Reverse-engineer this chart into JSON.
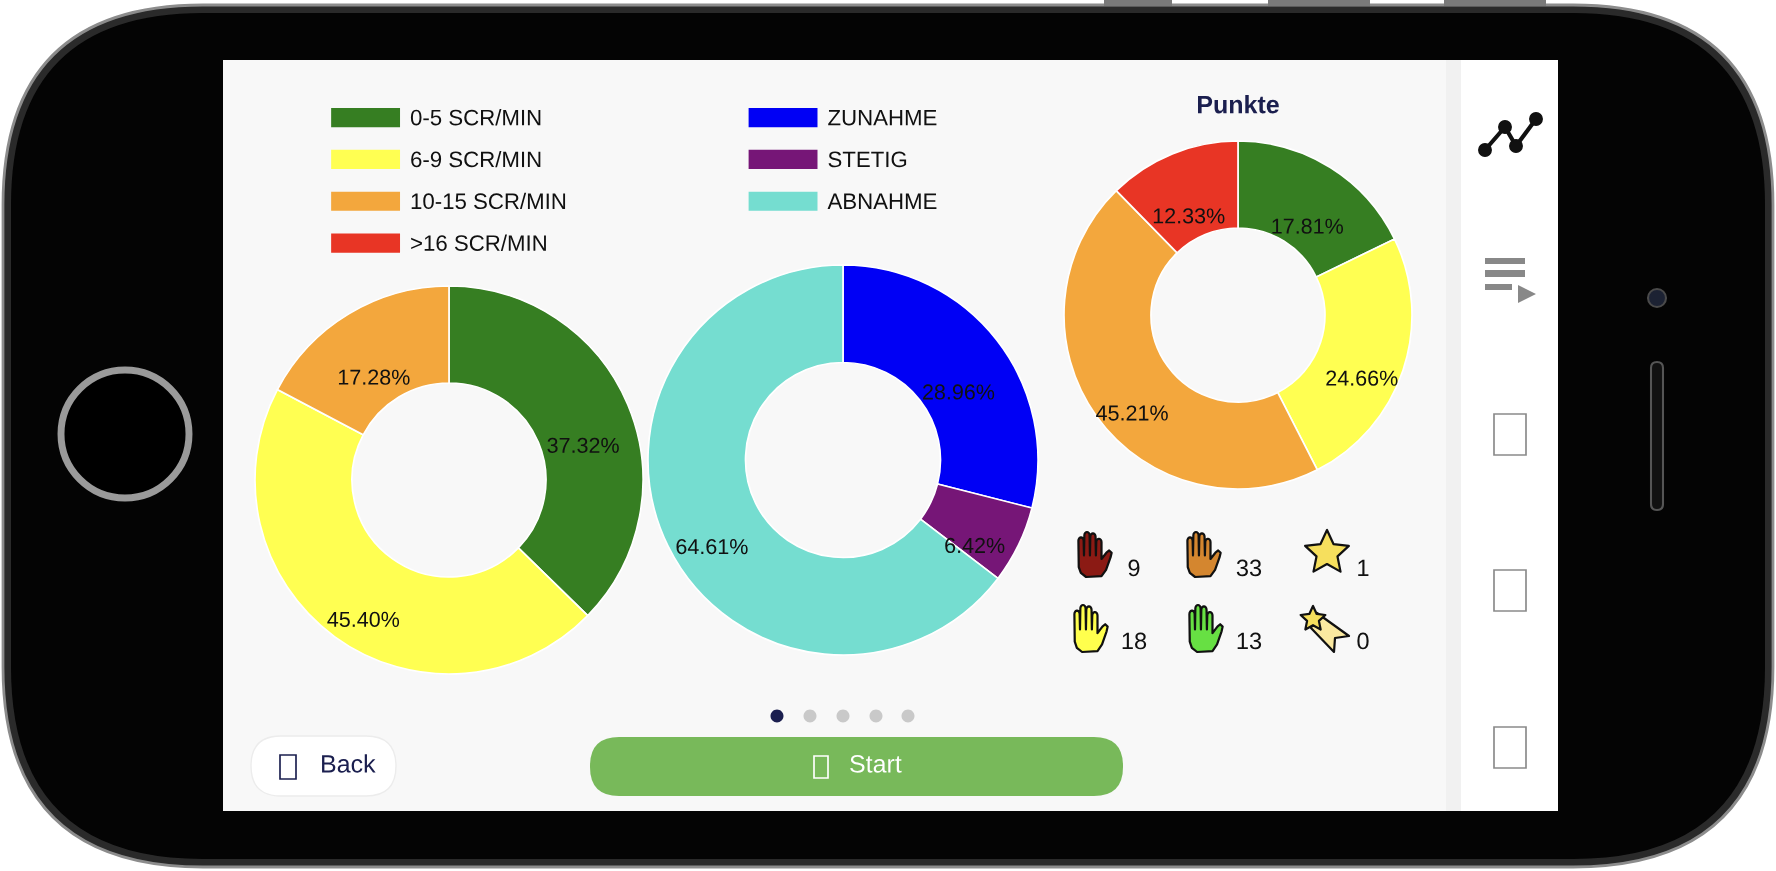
{
  "chart_data": [
    {
      "type": "donut",
      "categories": [
        "0-5 SCR/MIN",
        "6-9 SCR/MIN",
        "10-15 SCR/MIN",
        ">16 SCR/MIN"
      ],
      "values": [
        37.32,
        45.4,
        17.28,
        0
      ],
      "colors": [
        "#367e22",
        "#ffff52",
        "#f3a73d",
        "#e83525"
      ],
      "value_labels": [
        "37.32%",
        "45.40%",
        "17.28%",
        null
      ],
      "legend": "top"
    },
    {
      "type": "donut",
      "categories": [
        "ZUNAHME",
        "STETIG",
        "ABNAHME"
      ],
      "values": [
        28.96,
        6.42,
        64.61
      ],
      "colors": [
        "#0000f5",
        "#761677",
        "#75ddd0"
      ],
      "value_labels": [
        "28.96%",
        "6.42%",
        "64.61%"
      ],
      "legend": "top"
    },
    {
      "type": "donut",
      "title": "Punkte",
      "categories": [
        null,
        null,
        null,
        null
      ],
      "values": [
        17.81,
        24.66,
        45.21,
        12.33
      ],
      "colors": [
        "#367e22",
        "#ffff52",
        "#f3a73d",
        "#e83525"
      ],
      "value_labels": [
        "17.81%",
        "24.66%",
        "45.21%",
        "12.33%"
      ]
    },
    {
      "type": "other",
      "annotations": [
        "9",
        "33",
        "1",
        "18",
        "13",
        "0"
      ]
    },
    {
      "type": "other",
      "annotations": [
        "Back",
        "Start"
      ]
    }
  ]
}
